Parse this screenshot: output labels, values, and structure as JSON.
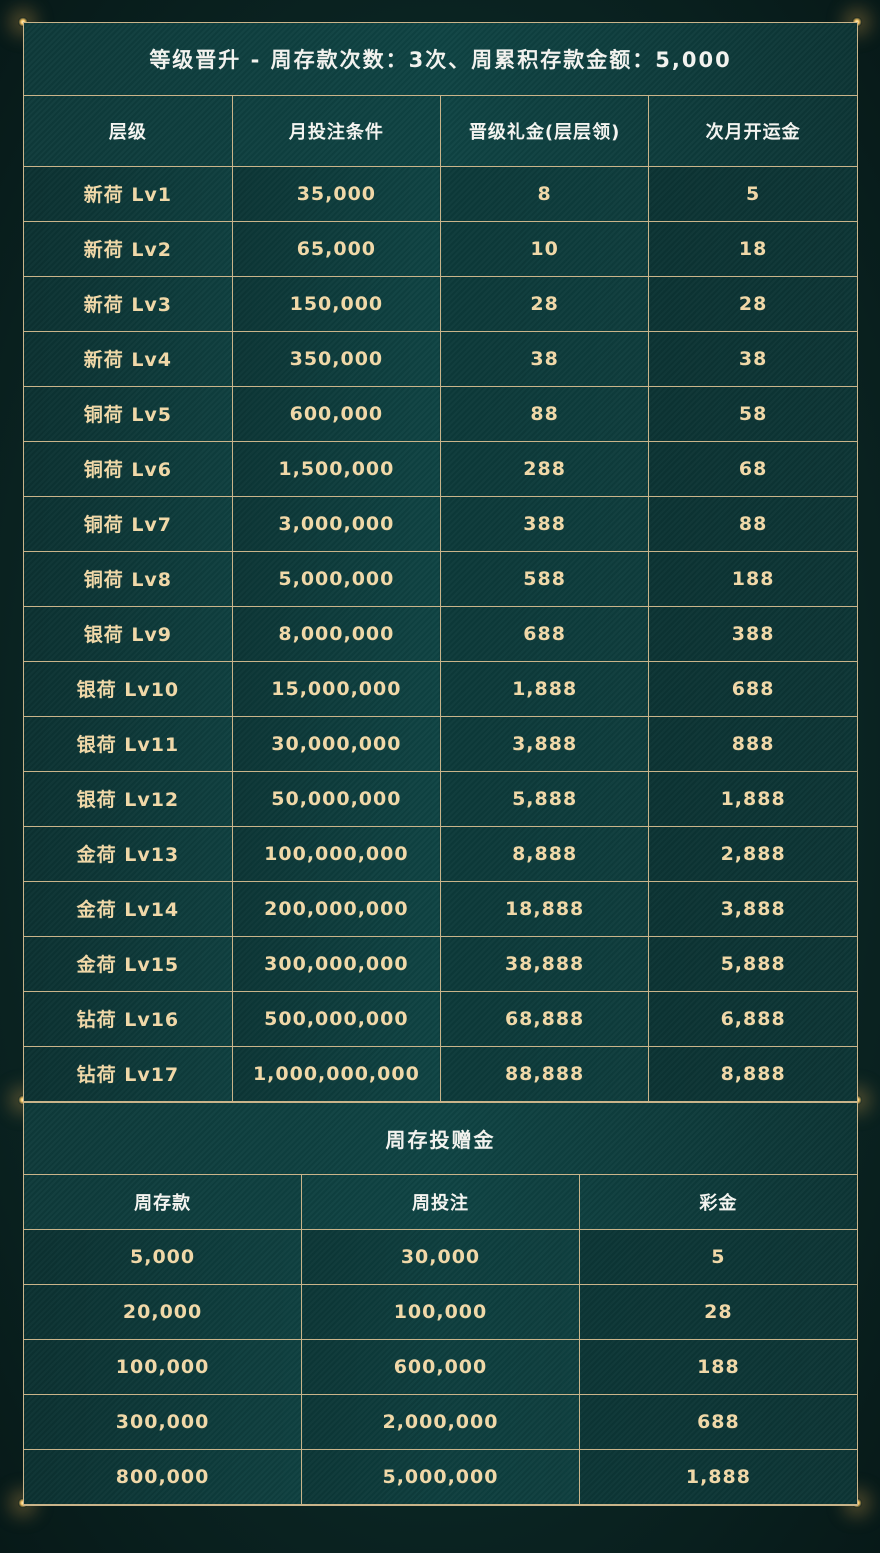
{
  "title": "等级晋升 - 周存款次数：3次、周累积存款金额：5,000",
  "levels": {
    "headers": [
      "层级",
      "月投注条件",
      "晋级礼金(层层领)",
      "次月开运金"
    ],
    "rows": [
      [
        "新荷 Lv1",
        "35,000",
        "8",
        "5"
      ],
      [
        "新荷 Lv2",
        "65,000",
        "10",
        "18"
      ],
      [
        "新荷 Lv3",
        "150,000",
        "28",
        "28"
      ],
      [
        "新荷 Lv4",
        "350,000",
        "38",
        "38"
      ],
      [
        "铜荷 Lv5",
        "600,000",
        "88",
        "58"
      ],
      [
        "铜荷 Lv6",
        "1,500,000",
        "288",
        "68"
      ],
      [
        "铜荷 Lv7",
        "3,000,000",
        "388",
        "88"
      ],
      [
        "铜荷 Lv8",
        "5,000,000",
        "588",
        "188"
      ],
      [
        "银荷 Lv9",
        "8,000,000",
        "688",
        "388"
      ],
      [
        "银荷 Lv10",
        "15,000,000",
        "1,888",
        "688"
      ],
      [
        "银荷 Lv11",
        "30,000,000",
        "3,888",
        "888"
      ],
      [
        "银荷 Lv12",
        "50,000,000",
        "5,888",
        "1,888"
      ],
      [
        "金荷 Lv13",
        "100,000,000",
        "8,888",
        "2,888"
      ],
      [
        "金荷 Lv14",
        "200,000,000",
        "18,888",
        "3,888"
      ],
      [
        "金荷 Lv15",
        "300,000,000",
        "38,888",
        "5,888"
      ],
      [
        "钻荷 Lv16",
        "500,000,000",
        "68,888",
        "6,888"
      ],
      [
        "钻荷 Lv17",
        "1,000,000,000",
        "88,888",
        "8,888"
      ]
    ]
  },
  "weekly": {
    "title": "周存投赠金",
    "headers": [
      "周存款",
      "周投注",
      "彩金"
    ],
    "rows": [
      [
        "5,000",
        "30,000",
        "5"
      ],
      [
        "20,000",
        "100,000",
        "28"
      ],
      [
        "100,000",
        "600,000",
        "188"
      ],
      [
        "300,000",
        "2,000,000",
        "688"
      ],
      [
        "800,000",
        "5,000,000",
        "1,888"
      ]
    ]
  }
}
